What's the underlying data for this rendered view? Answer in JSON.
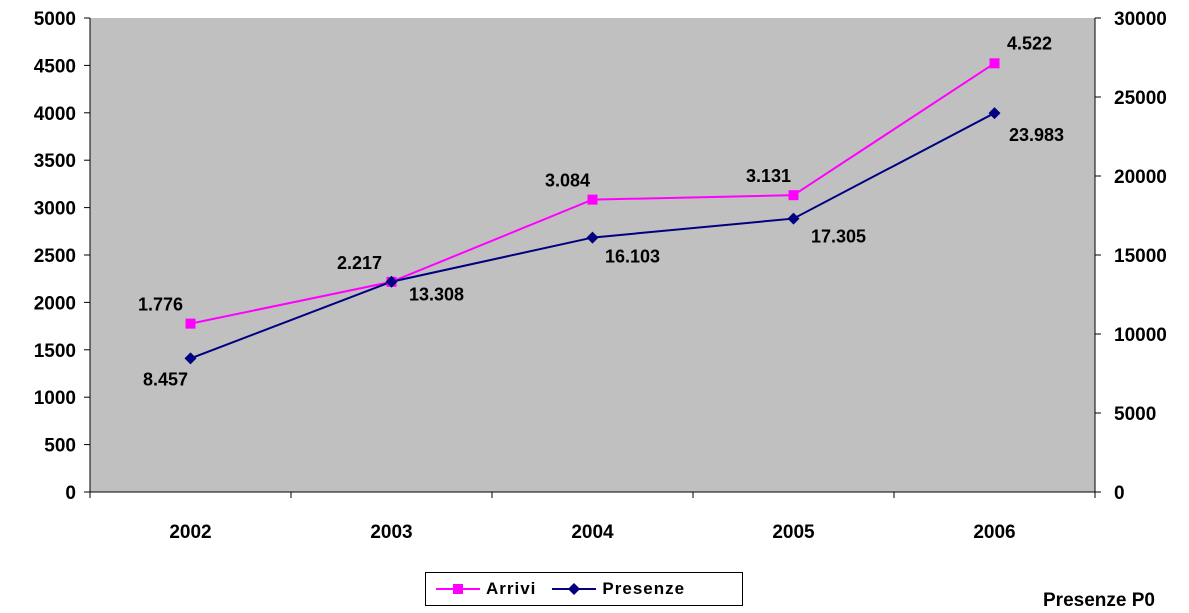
{
  "chart_data": {
    "type": "line",
    "categories": [
      "2002",
      "2003",
      "2004",
      "2005",
      "2006"
    ],
    "series": [
      {
        "name": "Arrivi",
        "axis": "left",
        "color": "#FF00FF",
        "marker": "square",
        "values": [
          1776,
          2217,
          3084,
          3131,
          4522
        ],
        "labels": [
          "1.776",
          "2.217",
          "3.084",
          "3.131",
          "4.522"
        ]
      },
      {
        "name": "Presenze",
        "axis": "right",
        "color": "#000080",
        "marker": "diamond",
        "values": [
          8457,
          13308,
          16103,
          17305,
          23983
        ],
        "labels": [
          "8.457",
          "13.308",
          "16.103",
          "17.305",
          "23.983"
        ]
      }
    ],
    "y_left": {
      "min": 0,
      "max": 5000,
      "step": 500,
      "ticks": [
        "0",
        "500",
        "1000",
        "1500",
        "2000",
        "2500",
        "3000",
        "3500",
        "4000",
        "4500",
        "5000"
      ]
    },
    "y_right": {
      "min": 0,
      "max": 30000,
      "step": 5000,
      "ticks": [
        "0",
        "5000",
        "10000",
        "15000",
        "20000",
        "25000",
        "30000"
      ]
    },
    "plot_background": "#C0C0C0",
    "legend_position": "bottom",
    "grid": false
  },
  "footer": {
    "cut_text": "Presenze P0"
  }
}
